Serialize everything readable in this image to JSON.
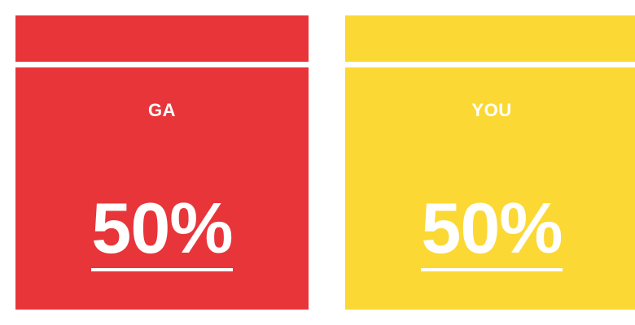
{
  "cards": [
    {
      "label": "GA",
      "value": "50%",
      "percent": 50,
      "color": "#e8353a"
    },
    {
      "label": "YOU",
      "value": "50%",
      "percent": 50,
      "color": "#fcd834"
    }
  ]
}
